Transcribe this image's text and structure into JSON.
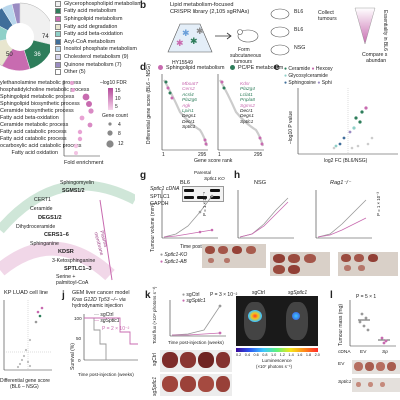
{
  "panel_letters": {
    "b": "b",
    "d": "d",
    "e": "e",
    "g": "g",
    "h": "h",
    "j": "j",
    "k": "k",
    "l": "l"
  },
  "panel_a": {
    "pie_labels": [
      "74",
      "36",
      "50"
    ],
    "legend": [
      {
        "label": "Glycerophospholipid metabolism",
        "color": "#f0f0f0"
      },
      {
        "label": "Fatty acid metabolism",
        "color": "#2e7d5b"
      },
      {
        "label": "Sphingolipid metabolism",
        "color": "#c86bb0"
      },
      {
        "label": "Fatty acid degradation",
        "color": "#e8e6cf"
      },
      {
        "label": "Fatty acid beta-oxidation",
        "color": "#8fd0c8"
      },
      {
        "label": "Acyl-CoA metabolism",
        "color": "#3f6e9a"
      },
      {
        "label": "Inositol phosphate metabolism",
        "color": "#b9d7ec"
      },
      {
        "label": "Cholesterol metabolism (9)",
        "color": "#d7d6ee"
      },
      {
        "label": "Quinone metabolism (7)",
        "color": "#9a8cc2"
      },
      {
        "label": "Other (5)",
        "color": "#ffffff"
      }
    ]
  },
  "panel_c": {
    "pathways": [
      "ylethanolamine metabolic process",
      "hosphatidylcholine metabolic process",
      "Sphingolipid metabolic process",
      "Sphingolipid biosynthetic process",
      "Ceramide biosynthetic process",
      "Fatty acid beta-oxidation",
      "Ceramide metabolic process",
      "Fatty acid catabolic process",
      "Fatty acid catabolic process",
      "ocarboxylic acid catabolic process",
      "Fatty acid oxidation"
    ],
    "legend_title": "–log10 FDR",
    "legend_scale": [
      "15",
      "10",
      "5"
    ],
    "size_title": "Gene count",
    "size_values": [
      "4",
      "8",
      "12"
    ],
    "xlabel": "Fold enrichment",
    "xticks": [
      "0",
      "20",
      "40",
      "60"
    ]
  },
  "panel_f": {
    "labels": [
      "Sphingomyelin",
      "SGMS1/2",
      "CERT1",
      "Ceramide",
      "DEGS1/2",
      "Dihydroceramide",
      "CERS1–6",
      "Sphinganine",
      "KDSR",
      "3-Ketosphinganine",
      "SPTLC1–3",
      "Serine +",
      "palmitoyl-CoA"
    ],
    "arc_label": "Plasma membrane"
  },
  "panel_b": {
    "title1": "Lipid metabolism-focused",
    "title2": "CRISPR library (2,105 sgRNAs)",
    "cells": "HY15549",
    "step1": "Form",
    "step2": "subcutaneous",
    "step3": "tumours",
    "collect1": "Collect",
    "collect2": "tumours",
    "mouse1": "BL6",
    "mouse2": "BL6",
    "mouse3": "NSG",
    "enrich_label": "Essentiality in BL6",
    "compare1": "Compare s",
    "compare2": "abundan"
  },
  "panel_d": {
    "legend": [
      {
        "label": "Sphingolipid metabolism",
        "color": "#c86bb0"
      },
      {
        "label": "PC/PE metabolism",
        "color": "#2e7d5b"
      }
    ],
    "ylabel": "Differential gene score (BL6 – NSG)",
    "ylabel2": "(BL6 – NSG)",
    "xlabel": "Gene score rank",
    "xticks": [
      "1",
      "295",
      "1",
      "295"
    ],
    "genes_left": [
      "Mboat7",
      "Cers2",
      "Acsl4",
      "Pla2g6",
      "Agk",
      "Lpin1",
      "Degs1",
      "Decr1",
      "Sptlc1"
    ],
    "genes_right": [
      "Kdsr",
      "Pla2g4",
      "Lclat1",
      "Pnpla8",
      "Sgms2",
      "Decr1",
      "Degs1",
      "Sptlc1"
    ]
  },
  "panel_e": {
    "legend": [
      "Ceramide",
      "Hexosy",
      "Glycosylceramide",
      "Sphingosine",
      "Sphi"
    ],
    "ylabel": "–log10 P value",
    "xlabel": "log2 FC (BL6/NSG)"
  },
  "panel_g": {
    "row_label": "Sptlc1 cDNA",
    "lane1": "Parental",
    "lane2": "Sptlc1 KO",
    "band1": "SPTLC1",
    "band2": "GAPDH"
  },
  "panel_h": {
    "titles": [
      "BL6",
      "NSG",
      "Rag1⁻/⁻"
    ],
    "ylabel": "Tumour volume (mm³)",
    "xlabel": "Time post-injection (days)",
    "pvalue1": "P = 1 × 10⁻⁵",
    "pvalue2": "P = 1 × 10⁻³",
    "legend": [
      "Sptlc1-KO",
      "Sptlc1-AB"
    ],
    "xticks": [
      "0",
      "10",
      "20",
      "25"
    ],
    "yticks": [
      "0",
      "500",
      "1,000",
      "1,500"
    ]
  },
  "panel_i": {
    "title": "KP LUAD cell line",
    "xlabel": "Differential gene score",
    "xlabel2": "(BL6 – NSG)"
  },
  "panel_j": {
    "title": "GEM liver cancer model",
    "subtitle": "Kras G12D Tp53 –/– via",
    "subtitle2": "hydrodynamic injection",
    "legend": [
      "sgCtrl",
      "sgSptlc1"
    ],
    "pvalue": "P = 2 × 10⁻²",
    "ylabel": "Survival (%)",
    "yticks": [
      "0",
      "50",
      "100"
    ],
    "xlabel": "Time post-injection (weeks)"
  },
  "panel_k": {
    "legend": [
      "sgCtrl",
      "sgSptlc1"
    ],
    "pvalue": "P = 3 × 10⁻²",
    "ylabel": "Total flux (×10⁹ photons s⁻¹)",
    "xlabel": "Time post-injection (weeks)",
    "image_labels": [
      "sgCtrl",
      "sgSptlc1"
    ],
    "colorbar_label": "Luminescence",
    "colorbar_unit": "(×10⁷ photons s⁻¹)",
    "colorbar_ticks": [
      "0.2",
      "0.4",
      "0.6",
      "0.8",
      "1.0",
      "1.2",
      "1.4",
      "1.6",
      "1.8",
      "2.0"
    ],
    "tumor_labels": [
      "sgCtrl",
      "sgSptlc1"
    ]
  },
  "panel_l": {
    "pvalue": "P = 5 × 1",
    "ylabel": "Tumour mass (mg)",
    "yticks": [
      "0",
      "50",
      "100",
      "150"
    ],
    "xlabels": [
      "cDNA",
      "EV",
      "Sp"
    ],
    "row_labels": [
      "EV",
      "Sptlc1 cD"
    ]
  },
  "colors": {
    "pink": "#c86bb0",
    "green": "#2e7d5b",
    "grey": "#999999"
  }
}
